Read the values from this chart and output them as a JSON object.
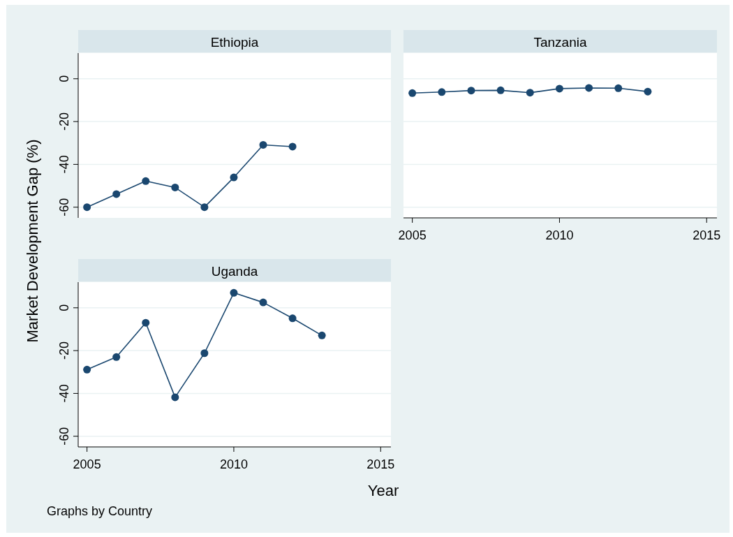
{
  "chart_data": [
    {
      "type": "line",
      "title": "Ethiopia",
      "ylabel": "Market Development Gap (%)",
      "x": [
        2005,
        2006,
        2007,
        2008,
        2009,
        2010,
        2011,
        2012
      ],
      "series": [
        {
          "color": "#1a476f",
          "values": [
            -60,
            -53.9,
            -47.8,
            -50.8,
            -60,
            -46.1,
            -30.9,
            -31.7
          ]
        }
      ],
      "xlim": [
        2004.7,
        2015.35
      ],
      "xticks": [
        2005,
        2010,
        2015
      ],
      "ylim": [
        -65,
        12
      ],
      "yticks": [
        -60,
        -40,
        -20,
        0
      ],
      "grid": "y",
      "marker": "circle",
      "tick_labels": "y"
    },
    {
      "type": "line",
      "title": "Tanzania",
      "x": [
        2005,
        2006,
        2007,
        2008,
        2009,
        2010,
        2011,
        2012,
        2013
      ],
      "series": [
        {
          "color": "#1a476f",
          "values": [
            -6.7,
            -6.2,
            -5.5,
            -5.4,
            -6.5,
            -4.6,
            -4.3,
            -4.4,
            -6.0
          ]
        }
      ],
      "xlim": [
        2004.7,
        2015.35
      ],
      "xticks": [
        2005,
        2010,
        2015
      ],
      "ylim": [
        -65,
        12
      ],
      "yticks": [
        -60,
        -40,
        -20,
        0
      ],
      "grid": "y",
      "marker": "circle",
      "tick_labels": "x"
    },
    {
      "type": "line",
      "title": "Uganda",
      "xlabel": "Year",
      "annotations": [
        "Graphs by Country"
      ],
      "x": [
        2005,
        2006,
        2007,
        2008,
        2009,
        2010,
        2011,
        2012,
        2013
      ],
      "series": [
        {
          "color": "#1a476f",
          "values": [
            -28.9,
            -23,
            -7,
            -41.8,
            -21.2,
            7,
            2.5,
            -4.9,
            -12.9
          ]
        }
      ],
      "xlim": [
        2004.7,
        2015.35
      ],
      "xticks": [
        2005,
        2010,
        2015
      ],
      "ylim": [
        -65,
        12
      ],
      "yticks": [
        -60,
        -40,
        -20,
        0
      ],
      "grid": "y",
      "marker": "circle"
    }
  ]
}
